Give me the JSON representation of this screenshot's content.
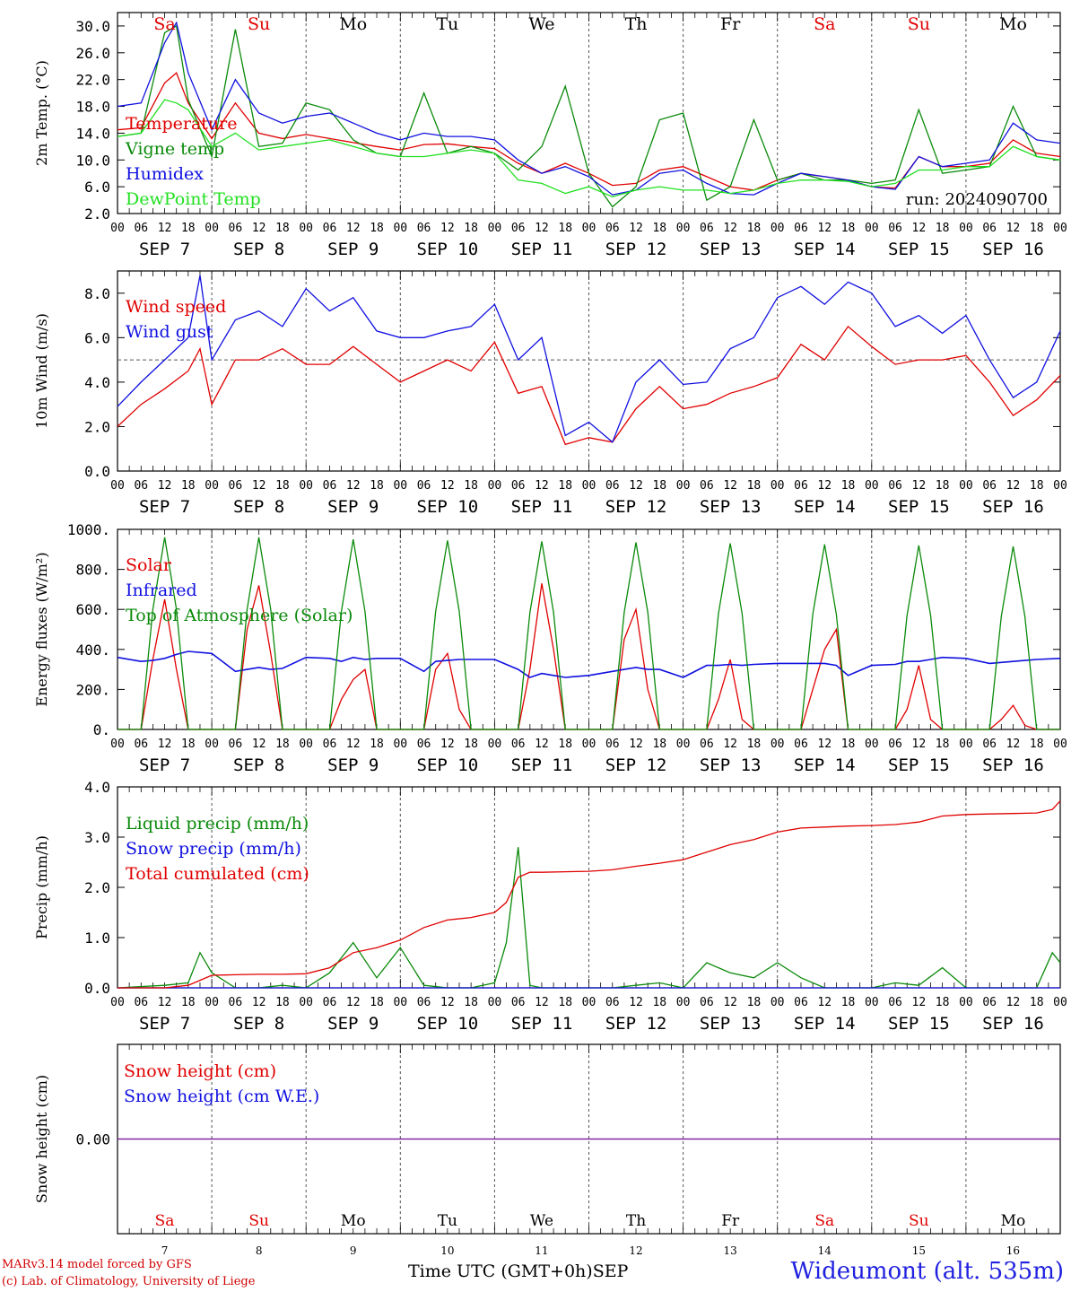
{
  "meta": {
    "model_credit": "MARv3.14 model forced by GFS",
    "lab_credit": "(c) Lab. of Climatology, University of Liege",
    "x_axis_title": "Time UTC (GMT+0h)",
    "month": "SEP",
    "station": "Wideumont (alt. 535m)",
    "run": "run: 2024090700"
  },
  "days": [
    {
      "dow": "Sa",
      "date": "7",
      "weekend": true
    },
    {
      "dow": "Su",
      "date": "8",
      "weekend": true
    },
    {
      "dow": "Mo",
      "date": "9",
      "weekend": false
    },
    {
      "dow": "Tu",
      "date": "10",
      "weekend": false
    },
    {
      "dow": "We",
      "date": "11",
      "weekend": false
    },
    {
      "dow": "Th",
      "date": "12",
      "weekend": false
    },
    {
      "dow": "Fr",
      "date": "13",
      "weekend": false
    },
    {
      "dow": "Sa",
      "date": "14",
      "weekend": true
    },
    {
      "dow": "Su",
      "date": "15",
      "weekend": true
    },
    {
      "dow": "Mo",
      "date": "16",
      "weekend": false
    }
  ],
  "hour_ticks": [
    "00",
    "06",
    "12",
    "18"
  ],
  "colors": {
    "red": "#e00000",
    "green": "#0a8a0a",
    "blue": "#1010e0",
    "lime": "#20e020",
    "purple": "#8020a0",
    "weekend": "#e00000",
    "axis": "#000000",
    "grid": "#555555"
  },
  "chart_data": [
    {
      "type": "line",
      "ylabel": "2m Temp. (°C)",
      "ylim": [
        2,
        32
      ],
      "yticks": [
        2,
        6,
        10,
        14,
        18,
        22,
        26,
        30
      ],
      "ytick_labels": [
        "2.0",
        "6.0",
        "10.0",
        "14.0",
        "18.0",
        "22.0",
        "26.0",
        "30.0"
      ],
      "x_hours": [
        0,
        6,
        12,
        15,
        18,
        24,
        30,
        36,
        42,
        48,
        54,
        60,
        66,
        72,
        78,
        84,
        90,
        96,
        102,
        108,
        114,
        120,
        126,
        132,
        138,
        144,
        150,
        156,
        162,
        168,
        174,
        180,
        186,
        192,
        198,
        204,
        210,
        216,
        222,
        228,
        234,
        240
      ],
      "series": [
        {
          "name": "Temperature",
          "color": "red",
          "values": [
            14.5,
            14.8,
            21.5,
            23.0,
            18.5,
            13.2,
            18.5,
            14.0,
            13.2,
            13.8,
            13.2,
            12.6,
            12.0,
            11.5,
            12.3,
            12.4,
            12.0,
            11.7,
            9.5,
            8.0,
            9.5,
            8.0,
            6.2,
            6.5,
            8.5,
            9.0,
            7.5,
            6.0,
            5.5,
            7.0,
            8.0,
            7.5,
            7.0,
            6.0,
            5.8,
            10.5,
            9.0,
            9.0,
            9.5,
            13.0,
            11.0,
            10.5
          ]
        },
        {
          "name": "Vigne temp",
          "color": "green",
          "values": [
            13.5,
            14.0,
            29.0,
            30.0,
            19.0,
            10.5,
            29.5,
            12.0,
            12.5,
            18.5,
            17.5,
            13.0,
            11.0,
            10.5,
            20.0,
            11.0,
            12.0,
            11.0,
            8.5,
            12.0,
            21.0,
            8.0,
            3.0,
            6.0,
            16.0,
            17.0,
            4.0,
            6.0,
            16.0,
            7.0,
            8.0,
            7.0,
            7.0,
            6.5,
            7.0,
            17.5,
            8.0,
            8.5,
            9.0,
            18.0,
            10.5,
            10.0
          ]
        },
        {
          "name": "Humidex",
          "color": "blue",
          "values": [
            18.0,
            18.5,
            27.5,
            30.5,
            23.0,
            14.5,
            22.0,
            17.0,
            15.5,
            16.5,
            17.0,
            15.5,
            14.0,
            13.0,
            14.0,
            13.5,
            13.5,
            13.0,
            10.0,
            8.0,
            9.0,
            7.5,
            4.8,
            5.5,
            8.0,
            8.5,
            6.5,
            5.0,
            4.8,
            6.5,
            8.0,
            7.5,
            7.0,
            6.0,
            5.6,
            10.5,
            9.0,
            9.5,
            10.0,
            15.5,
            13.0,
            12.5
          ]
        },
        {
          "name": "DewPoint Temp",
          "color": "lime",
          "values": [
            13.5,
            14.0,
            19.0,
            18.5,
            17.5,
            12.0,
            14.0,
            11.5,
            12.0,
            12.5,
            13.0,
            12.0,
            11.0,
            10.5,
            10.5,
            11.0,
            11.5,
            11.0,
            7.0,
            6.5,
            5.0,
            6.0,
            4.5,
            5.5,
            6.0,
            5.5,
            5.5,
            5.0,
            5.5,
            6.5,
            7.0,
            7.0,
            6.8,
            6.0,
            6.5,
            8.5,
            8.5,
            9.0,
            9.0,
            12.0,
            10.5,
            10.0
          ]
        }
      ]
    },
    {
      "type": "line",
      "ylabel": "10m Wind (m/s)",
      "ylim": [
        0,
        9
      ],
      "yticks": [
        0,
        2,
        4,
        6,
        8
      ],
      "ytick_labels": [
        "0.0",
        "2.0",
        "4.0",
        "6.0",
        "8.0"
      ],
      "reference_line": 5.0,
      "x_hours": [
        0,
        6,
        12,
        18,
        21,
        24,
        30,
        36,
        42,
        48,
        54,
        60,
        66,
        72,
        78,
        84,
        90,
        96,
        102,
        108,
        114,
        120,
        126,
        132,
        138,
        144,
        150,
        156,
        162,
        168,
        174,
        180,
        186,
        192,
        198,
        204,
        210,
        216,
        222,
        228,
        234,
        240
      ],
      "series": [
        {
          "name": "Wind speed",
          "color": "red",
          "values": [
            2.0,
            3.0,
            3.7,
            4.5,
            5.5,
            3.0,
            5.0,
            5.0,
            5.5,
            4.8,
            4.8,
            5.6,
            4.8,
            4.0,
            4.5,
            5.0,
            4.5,
            5.8,
            3.5,
            3.8,
            1.2,
            1.5,
            1.3,
            2.8,
            3.8,
            2.8,
            3.0,
            3.5,
            3.8,
            4.2,
            5.7,
            5.0,
            6.5,
            5.6,
            4.8,
            5.0,
            5.0,
            5.2,
            4.0,
            2.5,
            3.2,
            4.3
          ]
        },
        {
          "name": "Wind gust",
          "color": "blue",
          "values": [
            2.9,
            4.0,
            5.0,
            6.0,
            8.8,
            5.0,
            6.8,
            7.2,
            6.5,
            8.2,
            7.2,
            7.8,
            6.3,
            6.0,
            6.0,
            6.3,
            6.5,
            7.5,
            5.0,
            6.0,
            1.6,
            2.2,
            1.3,
            4.0,
            5.0,
            3.9,
            4.0,
            5.5,
            6.0,
            7.8,
            8.3,
            7.5,
            8.5,
            8.0,
            6.5,
            7.0,
            6.2,
            7.0,
            5.0,
            3.3,
            4.0,
            6.3
          ]
        }
      ]
    },
    {
      "type": "line",
      "ylabel": "Energy fluxes (W/m²)",
      "ylim": [
        0,
        1000
      ],
      "yticks": [
        0,
        200,
        400,
        600,
        800,
        1000
      ],
      "ytick_labels": [
        "0.",
        "200.",
        "400.",
        "600.",
        "800.",
        "1000."
      ],
      "x_hours": [
        0,
        6,
        9,
        12,
        15,
        18,
        24,
        30,
        33,
        36,
        39,
        42,
        48,
        54,
        57,
        60,
        63,
        66,
        72,
        78,
        81,
        84,
        87,
        90,
        96,
        102,
        105,
        108,
        111,
        114,
        120,
        126,
        129,
        132,
        135,
        138,
        144,
        150,
        153,
        156,
        159,
        162,
        168,
        174,
        177,
        180,
        183,
        186,
        192,
        198,
        201,
        204,
        207,
        210,
        216,
        222,
        225,
        228,
        231,
        234,
        240
      ],
      "series": [
        {
          "name": "Solar",
          "color": "red",
          "values": [
            0,
            0,
            350,
            650,
            300,
            0,
            0,
            0,
            500,
            720,
            380,
            0,
            0,
            0,
            150,
            250,
            300,
            0,
            0,
            0,
            300,
            380,
            100,
            0,
            0,
            0,
            300,
            730,
            400,
            0,
            0,
            0,
            450,
            600,
            200,
            0,
            0,
            0,
            150,
            350,
            50,
            0,
            0,
            0,
            200,
            400,
            500,
            0,
            0,
            0,
            100,
            320,
            50,
            0,
            0,
            0,
            50,
            120,
            20,
            0,
            0
          ]
        },
        {
          "name": "Infrared",
          "color": "blue",
          "values": [
            360,
            340,
            345,
            355,
            375,
            390,
            380,
            290,
            300,
            310,
            300,
            305,
            360,
            355,
            340,
            360,
            350,
            355,
            355,
            290,
            340,
            345,
            350,
            350,
            350,
            300,
            260,
            280,
            270,
            260,
            270,
            290,
            300,
            310,
            300,
            300,
            260,
            320,
            320,
            325,
            320,
            325,
            330,
            330,
            330,
            330,
            320,
            270,
            320,
            325,
            340,
            340,
            350,
            360,
            355,
            330,
            335,
            340,
            345,
            350,
            355
          ]
        },
        {
          "name": "Top of Atmosphere (Solar)",
          "color": "green",
          "values": [
            0,
            0,
            600,
            960,
            600,
            0,
            0,
            0,
            600,
            960,
            600,
            0,
            0,
            0,
            590,
            950,
            590,
            0,
            0,
            0,
            590,
            945,
            590,
            0,
            0,
            0,
            585,
            940,
            585,
            0,
            0,
            0,
            585,
            935,
            585,
            0,
            0,
            0,
            580,
            930,
            580,
            0,
            0,
            0,
            575,
            925,
            575,
            0,
            0,
            0,
            570,
            920,
            570,
            0,
            0,
            0,
            565,
            915,
            565,
            0,
            0
          ]
        }
      ]
    },
    {
      "type": "line",
      "ylabel": "Precip (mm/h)",
      "ylim": [
        0,
        4
      ],
      "yticks": [
        0,
        1,
        2,
        3,
        4
      ],
      "ytick_labels": [
        "0.0",
        "1.0",
        "2.0",
        "3.0",
        "4.0"
      ],
      "x_hours": [
        0,
        12,
        18,
        21,
        24,
        30,
        36,
        42,
        48,
        54,
        60,
        66,
        72,
        78,
        84,
        90,
        96,
        99,
        102,
        105,
        108,
        114,
        120,
        126,
        132,
        138,
        144,
        150,
        156,
        162,
        168,
        174,
        180,
        186,
        192,
        198,
        204,
        210,
        216,
        222,
        228,
        234,
        238,
        240
      ],
      "series": [
        {
          "name": "Liquid precip (mm/h)",
          "color": "green",
          "values": [
            0,
            0.05,
            0.1,
            0.7,
            0.3,
            0,
            0,
            0.05,
            0,
            0.3,
            0.9,
            0.2,
            0.8,
            0.05,
            0,
            0,
            0.1,
            0.9,
            2.8,
            0.05,
            0,
            0,
            0,
            0,
            0.05,
            0.1,
            0,
            0.5,
            0.3,
            0.2,
            0.5,
            0.2,
            0,
            0,
            0,
            0.1,
            0.05,
            0.4,
            0,
            0,
            0,
            0,
            0.7,
            0.5
          ]
        },
        {
          "name": "Snow precip (mm/h)",
          "color": "blue",
          "values": [
            0,
            0,
            0,
            0,
            0,
            0,
            0,
            0,
            0,
            0,
            0,
            0,
            0,
            0,
            0,
            0,
            0,
            0,
            0,
            0,
            0,
            0,
            0,
            0,
            0,
            0,
            0,
            0,
            0,
            0,
            0,
            0,
            0,
            0,
            0,
            0,
            0,
            0,
            0,
            0,
            0,
            0,
            0,
            0
          ]
        },
        {
          "name": "Total cumulated (cm)",
          "color": "red",
          "values": [
            0,
            0,
            0.05,
            0.15,
            0.25,
            0.26,
            0.27,
            0.27,
            0.28,
            0.4,
            0.7,
            0.8,
            0.95,
            1.2,
            1.35,
            1.4,
            1.5,
            1.7,
            2.2,
            2.3,
            2.3,
            2.31,
            2.32,
            2.35,
            2.42,
            2.48,
            2.55,
            2.7,
            2.85,
            2.95,
            3.1,
            3.18,
            3.2,
            3.22,
            3.23,
            3.25,
            3.3,
            3.42,
            3.45,
            3.46,
            3.47,
            3.48,
            3.55,
            3.72
          ]
        }
      ]
    },
    {
      "type": "line",
      "ylabel": "Snow height (cm)",
      "ylim": [
        -1,
        1
      ],
      "yticks": [
        0
      ],
      "ytick_labels": [
        "0.00"
      ],
      "x_hours": [
        0,
        240
      ],
      "series": [
        {
          "name": "Snow height (cm)",
          "color": "red",
          "values": [
            0,
            0
          ]
        },
        {
          "name": "Snow height (cm W.E.)",
          "color": "blue",
          "values": [
            0,
            0
          ]
        }
      ]
    }
  ]
}
